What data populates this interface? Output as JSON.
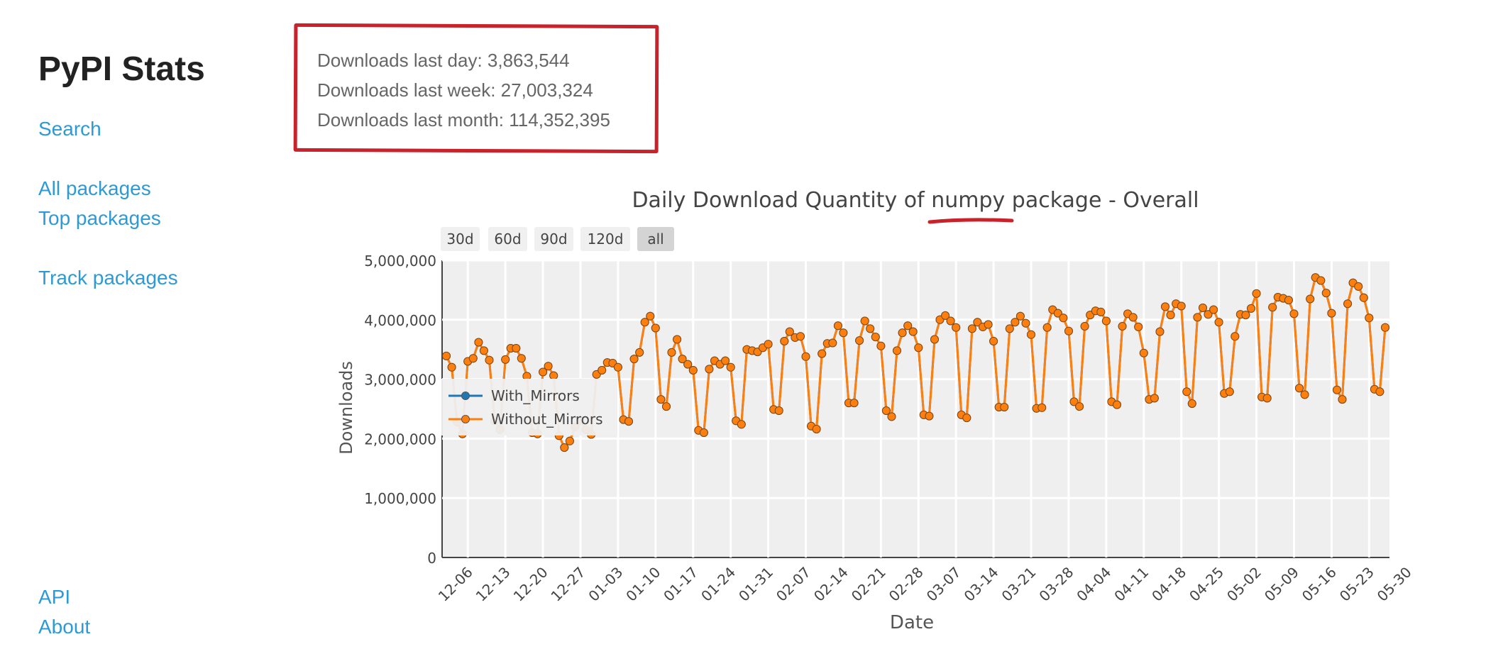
{
  "sidebar": {
    "title": "PyPI Stats",
    "links": [
      "Search",
      "All packages",
      "Top packages",
      "Track packages"
    ],
    "footer_links": [
      "API",
      "About"
    ]
  },
  "stats": {
    "last_day": "Downloads last day: 3,863,544",
    "last_week": "Downloads last week: 27,003,324",
    "last_month": "Downloads last month: 114,352,395"
  },
  "colors": {
    "link": "#2d9ad6",
    "highlight": "#c8222b",
    "with_mirrors": "#1f77b4",
    "without_mirrors": "#ff7f0e"
  },
  "chart_data": {
    "type": "line",
    "title_prefix": "Daily Download Quantity of ",
    "title_package": "numpy",
    "title_suffix": " package - Overall",
    "xlabel": "Date",
    "ylabel": "Downloads",
    "ylim": [
      0,
      5000000
    ],
    "yticks": [
      0,
      1000000,
      2000000,
      3000000,
      4000000,
      5000000
    ],
    "ytick_labels": [
      "0",
      "1,000,000",
      "2,000,000",
      "3,000,000",
      "4,000,000",
      "5,000,000"
    ],
    "xticks": [
      "12-06",
      "12-13",
      "12-20",
      "12-27",
      "01-03",
      "01-10",
      "01-17",
      "01-24",
      "01-31",
      "02-07",
      "02-14",
      "02-21",
      "02-28",
      "03-07",
      "03-14",
      "03-21",
      "03-28",
      "04-04",
      "04-11",
      "04-18",
      "04-25",
      "05-02",
      "05-09",
      "05-16",
      "05-23",
      "05-30"
    ],
    "range_buttons": [
      "30d",
      "60d",
      "90d",
      "120d",
      "all"
    ],
    "active_range": "all",
    "grid": true,
    "legend_position": "left-middle",
    "x_start": "12-02",
    "series": [
      {
        "name": "With_Mirrors",
        "values": [
          3390000,
          3200000,
          2280000,
          2080000,
          3300000,
          3350000,
          3620000,
          3480000,
          3320000,
          2300000,
          2150000,
          3330000,
          3520000,
          3520000,
          3350000,
          3050000,
          2100000,
          2080000,
          3120000,
          3220000,
          3060000,
          2050000,
          1850000,
          1960000,
          2200000,
          2300000,
          2150000,
          2070000,
          3080000,
          3150000,
          3280000,
          3270000,
          3200000,
          2320000,
          2290000,
          3340000,
          3450000,
          3960000,
          4060000,
          3860000,
          2660000,
          2540000,
          3450000,
          3670000,
          3340000,
          3250000,
          3150000,
          2140000,
          2100000,
          3170000,
          3310000,
          3250000,
          3310000,
          3200000,
          2300000,
          2240000,
          3500000,
          3480000,
          3460000,
          3530000,
          3590000,
          2490000,
          2470000,
          3640000,
          3800000,
          3700000,
          3720000,
          3380000,
          2210000,
          2160000,
          3430000,
          3600000,
          3610000,
          3900000,
          3780000,
          2600000,
          2600000,
          3650000,
          3980000,
          3850000,
          3710000,
          3560000,
          2470000,
          2370000,
          3480000,
          3780000,
          3900000,
          3800000,
          3530000,
          2400000,
          2380000,
          3670000,
          4000000,
          4070000,
          3980000,
          3870000,
          2400000,
          2350000,
          3850000,
          3960000,
          3880000,
          3920000,
          3640000,
          2530000,
          2530000,
          3850000,
          3960000,
          4060000,
          3940000,
          3750000,
          2510000,
          2520000,
          3870000,
          4170000,
          4110000,
          4030000,
          3810000,
          2620000,
          2540000,
          3890000,
          4080000,
          4150000,
          4130000,
          3980000,
          2620000,
          2570000,
          3890000,
          4100000,
          4040000,
          3880000,
          3440000,
          2660000,
          2680000,
          3800000,
          4220000,
          4080000,
          4270000,
          4230000,
          2790000,
          2590000,
          4040000,
          4200000,
          4090000,
          4170000,
          3960000,
          2760000,
          2790000,
          3720000,
          4090000,
          4080000,
          4190000,
          4440000,
          2700000,
          2680000,
          4210000,
          4380000,
          4360000,
          4330000,
          4100000,
          2850000,
          2740000,
          4350000,
          4710000,
          4660000,
          4450000,
          4110000,
          2820000,
          2660000,
          4270000,
          4620000,
          4560000,
          4370000,
          4030000,
          2830000,
          2790000,
          3870000
        ]
      },
      {
        "name": "Without_Mirrors",
        "values": [
          3390000,
          3200000,
          2280000,
          2080000,
          3300000,
          3350000,
          3620000,
          3480000,
          3320000,
          2300000,
          2150000,
          3330000,
          3520000,
          3520000,
          3350000,
          3050000,
          2100000,
          2080000,
          3120000,
          3220000,
          3060000,
          2050000,
          1850000,
          1960000,
          2200000,
          2300000,
          2150000,
          2070000,
          3080000,
          3150000,
          3280000,
          3270000,
          3200000,
          2320000,
          2290000,
          3340000,
          3450000,
          3960000,
          4060000,
          3860000,
          2660000,
          2540000,
          3450000,
          3670000,
          3340000,
          3250000,
          3150000,
          2140000,
          2100000,
          3170000,
          3310000,
          3250000,
          3310000,
          3200000,
          2300000,
          2240000,
          3500000,
          3480000,
          3460000,
          3530000,
          3590000,
          2490000,
          2470000,
          3640000,
          3800000,
          3700000,
          3720000,
          3380000,
          2210000,
          2160000,
          3430000,
          3600000,
          3610000,
          3900000,
          3780000,
          2600000,
          2600000,
          3650000,
          3980000,
          3850000,
          3710000,
          3560000,
          2470000,
          2370000,
          3480000,
          3780000,
          3900000,
          3800000,
          3530000,
          2400000,
          2380000,
          3670000,
          4000000,
          4070000,
          3980000,
          3870000,
          2400000,
          2350000,
          3850000,
          3960000,
          3880000,
          3920000,
          3640000,
          2530000,
          2530000,
          3850000,
          3960000,
          4060000,
          3940000,
          3750000,
          2510000,
          2520000,
          3870000,
          4170000,
          4110000,
          4030000,
          3810000,
          2620000,
          2540000,
          3890000,
          4080000,
          4150000,
          4130000,
          3980000,
          2620000,
          2570000,
          3890000,
          4100000,
          4040000,
          3880000,
          3440000,
          2660000,
          2680000,
          3800000,
          4220000,
          4080000,
          4270000,
          4230000,
          2790000,
          2590000,
          4040000,
          4200000,
          4090000,
          4170000,
          3960000,
          2760000,
          2790000,
          3720000,
          4090000,
          4080000,
          4190000,
          4440000,
          2700000,
          2680000,
          4210000,
          4380000,
          4360000,
          4330000,
          4100000,
          2850000,
          2740000,
          4350000,
          4710000,
          4660000,
          4450000,
          4110000,
          2820000,
          2660000,
          4270000,
          4620000,
          4560000,
          4370000,
          4030000,
          2830000,
          2790000,
          3870000
        ]
      }
    ]
  }
}
